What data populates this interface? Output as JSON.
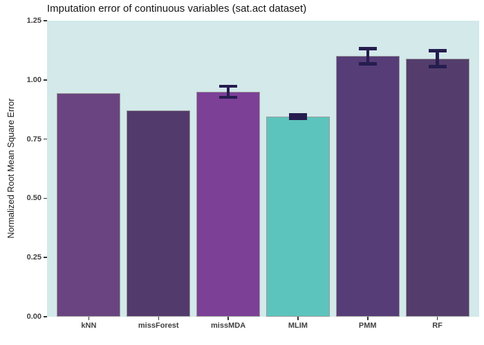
{
  "title": "Imputation error of continuous variables (sat.act dataset)",
  "chart_data": {
    "type": "bar",
    "title": "Imputation error of continuous variables (sat.act dataset)",
    "xlabel": "",
    "ylabel": "Normalized Root Mean Square Error",
    "categories": [
      "kNN",
      "missForest",
      "missMDA",
      "MLIM",
      "PMM",
      "RF"
    ],
    "values": [
      0.945,
      0.87,
      0.95,
      0.845,
      1.1,
      1.09
    ],
    "error_bars": [
      null,
      null,
      0.03,
      0.014,
      0.038,
      0.04
    ],
    "bar_colors": [
      "#6A4480",
      "#533A6C",
      "#7C4097",
      "#5CC4BC",
      "#563D78",
      "#543D6C"
    ],
    "yticks": [
      "0.00",
      "0.25",
      "0.50",
      "0.75",
      "1.00",
      "1.25"
    ],
    "ylim": [
      0,
      1.25
    ],
    "grid": false,
    "legend": false,
    "panel_bg": "#D3E9EA",
    "bar_border_color": "#9A9A9A",
    "errorbar_color": "#261D4F",
    "tick_color": "#333333"
  }
}
